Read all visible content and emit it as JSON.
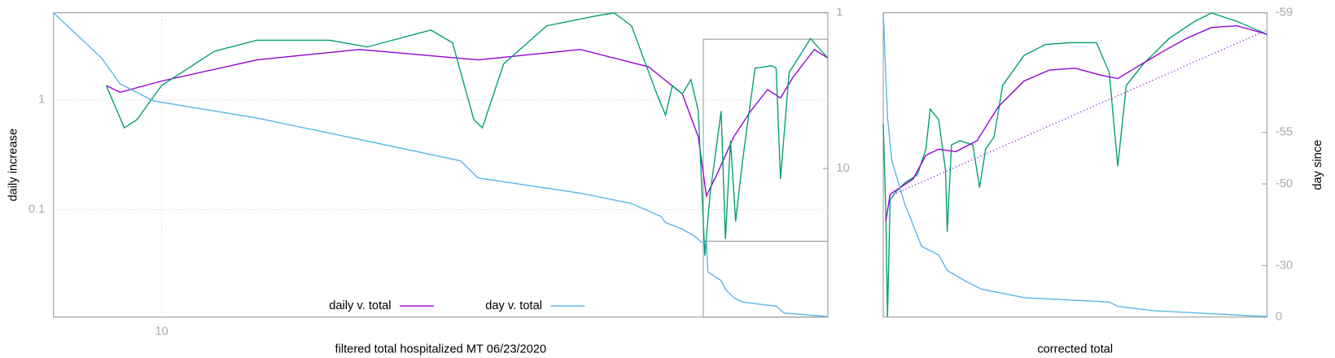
{
  "chart_data": [
    {
      "type": "line",
      "xlabel": "filtered total hospitalized MT 06/23/2020",
      "ylabel": "daily increase",
      "xscale": "log",
      "yscale": "log",
      "y2scale": "log",
      "xlim": [
        7,
        90
      ],
      "xticks": [
        10
      ],
      "ylim": [
        0.0105,
        6.2
      ],
      "yticks": [
        1,
        0.1
      ],
      "y2lim": [
        90,
        1
      ],
      "y2ticks": [
        1,
        10
      ],
      "grid": true,
      "legend": "bottom",
      "series": [
        {
          "name": "daily v. total",
          "color": "#9400d3",
          "x": [
            8.33,
            8.72,
            10,
            13.7,
            19.2,
            28.4,
            39.8,
            49.8,
            55.7,
            58.7,
            60.3,
            62.4,
            66,
            69.8,
            73.8,
            77,
            80.3,
            86.1,
            90
          ],
          "values": [
            1.35,
            1.17,
            1.48,
            2.31,
            2.87,
            2.31,
            2.87,
            2.0,
            1.13,
            0.46,
            0.133,
            0.208,
            0.46,
            0.79,
            1.24,
            1.04,
            1.62,
            2.87,
            2.4
          ]
        },
        {
          "color": "#009e73",
          "x": [
            8.33,
            8.84,
            9.22,
            10,
            11.9,
            13.7,
            17.4,
            19.7,
            24.3,
            26.1,
            28.0,
            28.8,
            30.9,
            35.6,
            42.1,
            44.5,
            47.1,
            51.2,
            52.7,
            53.9,
            55.7,
            57.3,
            58.7,
            60.0,
            61.0,
            63.3,
            64.2,
            65.3,
            66.4,
            67.9,
            70.8,
            74.8,
            75.9,
            77.0,
            79.2,
            85.0,
            90
          ],
          "values": [
            1.35,
            0.555,
            0.66,
            1.35,
            2.77,
            3.49,
            3.49,
            3.03,
            4.32,
            3.31,
            0.66,
            0.555,
            2.12,
            4.72,
            5.85,
            6.18,
            4.72,
            1.13,
            0.725,
            1.35,
            1.13,
            1.53,
            0.79,
            0.038,
            0.133,
            0.79,
            0.054,
            0.425,
            0.078,
            0.27,
            1.94,
            2.04,
            1.94,
            0.19,
            1.77,
            3.61,
            2.4
          ]
        },
        {
          "name": "day v. total",
          "color": "#56b4e9",
          "axis": "y2",
          "x": [
            7.0,
            8.21,
            8.72,
            9.74,
            13.7,
            19.2,
            26.8,
            28.4,
            39.8,
            47.1,
            51.9,
            52.7,
            55.7,
            58.0,
            59.3,
            60.3,
            60.6,
            63.3,
            64.2,
            66.0,
            67.9,
            75.9,
            78.0,
            90
          ],
          "values": [
            1.0,
            1.96,
            2.86,
            3.68,
            4.74,
            6.5,
            8.93,
            11.5,
            14.4,
            16.8,
            20.3,
            22.2,
            24.5,
            27.2,
            29.7,
            29.7,
            46.2,
            52.5,
            59.6,
            67.6,
            72,
            76.7,
            84.8,
            89.3
          ]
        }
      ]
    },
    {
      "type": "line",
      "xlabel": "corrected total",
      "y2label": "day since",
      "xscale": "linear",
      "yscale": "log",
      "y2scale": "log",
      "y2shift": 60,
      "xlim": [
        0,
        90
      ],
      "ylim": [
        0.0105,
        6.2
      ],
      "y2lim": [
        0,
        -59
      ],
      "y2ticks": [
        -59,
        -55,
        -50,
        -30,
        0
      ],
      "grid": false,
      "series": [
        {
          "color": "#009e73",
          "x": [
            0,
            0.6,
            1,
            1.6,
            3,
            5,
            8,
            10,
            11,
            13,
            14.6,
            15,
            16,
            18,
            21,
            22.6,
            24,
            26,
            28,
            33,
            38,
            44,
            50,
            53,
            55,
            57,
            61,
            67,
            73,
            77,
            83,
            90
          ],
          "values": [
            0.607,
            0.093,
            0.0105,
            0.122,
            0.146,
            0.174,
            0.208,
            0.355,
            0.822,
            0.66,
            0.227,
            0.063,
            0.388,
            0.425,
            0.388,
            0.159,
            0.355,
            0.46,
            1.35,
            2.53,
            3.19,
            3.31,
            3.31,
            1.77,
            0.249,
            1.35,
            2.12,
            3.61,
            5.17,
            6.18,
            5.17,
            3.95
          ]
        },
        {
          "color": "#9400d3",
          "x": [
            0.6,
            1.6,
            4,
            7,
            10,
            13,
            17,
            22,
            27,
            33,
            39,
            45,
            51,
            55,
            59,
            65,
            71,
            77,
            83,
            90
          ],
          "values": [
            0.078,
            0.138,
            0.159,
            0.19,
            0.313,
            0.355,
            0.337,
            0.425,
            0.867,
            1.48,
            1.87,
            1.94,
            1.68,
            1.56,
            1.94,
            2.67,
            3.61,
            4.56,
            4.72,
            3.95
          ]
        },
        {
          "color": "#9400d3",
          "style": "dotted",
          "x": [
            1.6,
            90
          ],
          "values": [
            0.133,
            4.32
          ]
        },
        {
          "color": "#56b4e9",
          "axis": "y2",
          "x": [
            0,
            1,
            2,
            5,
            9,
            13,
            15,
            19,
            23,
            33,
            53,
            55,
            63,
            90
          ],
          "values": [
            -59,
            -55.9,
            -52.7,
            -47,
            -36.8,
            -34,
            -28,
            -23.3,
            -18.8,
            -13.8,
            -11,
            -8.1,
            -5,
            -0.4
          ]
        }
      ]
    }
  ]
}
